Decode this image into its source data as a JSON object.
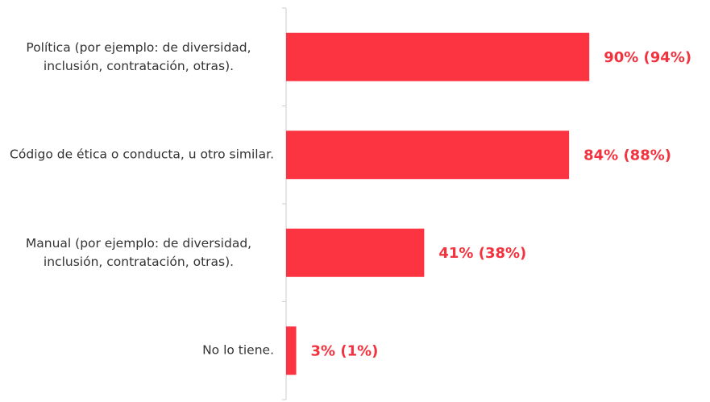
{
  "chart_data": {
    "type": "bar",
    "orientation": "horizontal",
    "categories": [
      "Política (por ejemplo: de diversidad, inclusión, contratación, otras).",
      "Código de ética o conducta, u otro similar.",
      "Manual (por ejemplo: de diversidad, inclusión, contratación, otras).",
      "No lo tiene."
    ],
    "values": [
      90,
      84,
      41,
      3
    ],
    "value_labels": [
      "90% (94%)",
      "84% (88%)",
      "41% (38%)",
      "3% (1%)"
    ],
    "color": "#fc3441",
    "label_color": "#f2333f",
    "xlim": [
      0,
      100
    ]
  }
}
